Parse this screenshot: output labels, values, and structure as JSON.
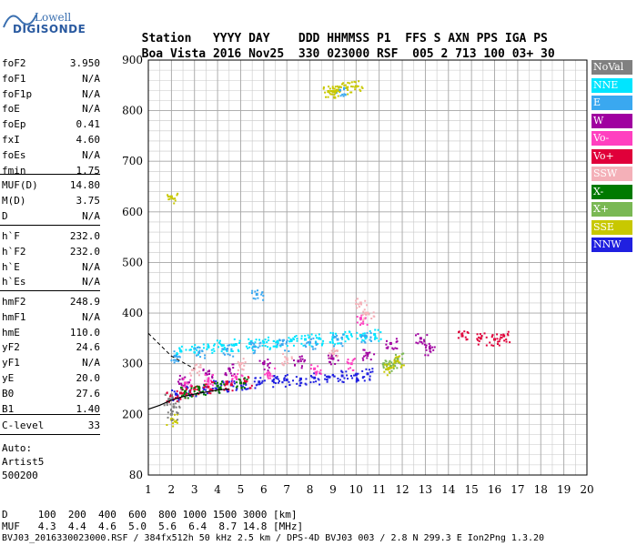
{
  "logo": {
    "top": "Lowell",
    "bottom": "DIGISONDE"
  },
  "header": {
    "row1": [
      "Station",
      "YYYY DAY",
      "DDD",
      "HHMMSS",
      "P1",
      "FFS",
      "S",
      "AXN",
      "PPS",
      "IGA",
      "PS"
    ],
    "row2": [
      "Boa Vista",
      "2016 Nov25",
      "330",
      "023000",
      "RSF",
      "005",
      "2",
      "713",
      "100",
      "03+",
      "30"
    ]
  },
  "params_group1": [
    {
      "name": "foF2",
      "value": "3.950"
    },
    {
      "name": "foF1",
      "value": "N/A"
    },
    {
      "name": "foF1p",
      "value": "N/A"
    },
    {
      "name": "foE",
      "value": "N/A"
    },
    {
      "name": "foEp",
      "value": "0.41"
    },
    {
      "name": "fxI",
      "value": "4.60"
    },
    {
      "name": "foEs",
      "value": "N/A"
    },
    {
      "name": "fmin",
      "value": "1.75"
    }
  ],
  "params_group2": [
    {
      "name": "MUF(D)",
      "value": "14.80"
    },
    {
      "name": "M(D)",
      "value": "3.75"
    },
    {
      "name": "D",
      "value": "N/A"
    }
  ],
  "params_group3": [
    {
      "name": "h`F",
      "value": "232.0"
    },
    {
      "name": "h`F2",
      "value": "232.0"
    },
    {
      "name": "h`E",
      "value": "N/A"
    },
    {
      "name": "h`Es",
      "value": "N/A"
    }
  ],
  "params_group4": [
    {
      "name": "hmF2",
      "value": "248.9"
    },
    {
      "name": "hmF1",
      "value": "N/A"
    },
    {
      "name": "hmE",
      "value": "110.0"
    },
    {
      "name": "yF2",
      "value": "24.6"
    },
    {
      "name": "yF1",
      "value": "N/A"
    },
    {
      "name": "yE",
      "value": "20.0"
    },
    {
      "name": "B0",
      "value": "27.6"
    },
    {
      "name": "B1",
      "value": "1.40"
    }
  ],
  "params_group5": [
    {
      "name": "C-level",
      "value": "33"
    }
  ],
  "autoscale": {
    "line1": "Auto:",
    "line2": "Artist5",
    "line3": "500200"
  },
  "footer": {
    "d_line": "D     100  200  400  600  800 1000 1500 3000 [km]",
    "muf_line": "MUF   4.3  4.4  4.6  5.0  5.6  6.4  8.7 14.8 [MHz]",
    "file_line": "BVJ03_2016330023000.RSF / 384fx512h 50 kHz 2.5 km / DPS-4D BVJ03 003 / 2.8 N 299.3 E Ion2Png 1.3.20"
  },
  "legend": [
    {
      "label": "NoVal",
      "color": "#808080"
    },
    {
      "label": "NNE",
      "color": "#00e5ff"
    },
    {
      "label": "E",
      "color": "#3aa8f0"
    },
    {
      "label": "W",
      "color": "#a000a0"
    },
    {
      "label": "Vo-",
      "color": "#ff40c0"
    },
    {
      "label": "Vo+",
      "color": "#e0003a"
    },
    {
      "label": "SSW",
      "color": "#f4b0b8"
    },
    {
      "label": "X-",
      "color": "#007a00"
    },
    {
      "label": "X+",
      "color": "#7ab854"
    },
    {
      "label": "SSE",
      "color": "#c8c800"
    },
    {
      "label": "NNW",
      "color": "#2020e0"
    }
  ],
  "chart_data": {
    "type": "scatter",
    "xlim": [
      1,
      20
    ],
    "ylim": [
      80,
      900
    ],
    "x_ticks": [
      1,
      2,
      3,
      4,
      5,
      6,
      7,
      8,
      9,
      10,
      11,
      12,
      13,
      14,
      15,
      16,
      17,
      18,
      19,
      20
    ],
    "y_ticks": [
      80,
      200,
      300,
      400,
      500,
      600,
      700,
      800,
      900
    ],
    "grid": true,
    "legend_position": "right",
    "series": [
      {
        "name": "NNW",
        "color": "#2020e0",
        "points": [
          [
            2.2,
            240
          ],
          [
            2.8,
            245
          ],
          [
            3.4,
            252
          ],
          [
            4.0,
            256
          ],
          [
            4.6,
            258
          ],
          [
            5.2,
            262
          ],
          [
            5.8,
            264
          ],
          [
            6.4,
            266
          ],
          [
            7.0,
            268
          ],
          [
            7.6,
            270
          ],
          [
            8.2,
            272
          ],
          [
            8.8,
            274
          ],
          [
            9.4,
            276
          ],
          [
            10.0,
            278
          ],
          [
            10.5,
            280
          ]
        ]
      },
      {
        "name": "NNE",
        "color": "#00e5ff",
        "points": [
          [
            2.4,
            325
          ],
          [
            3.0,
            330
          ],
          [
            3.6,
            333
          ],
          [
            4.2,
            336
          ],
          [
            4.8,
            338
          ],
          [
            5.4,
            340
          ],
          [
            6.0,
            342
          ],
          [
            6.6,
            344
          ],
          [
            7.2,
            346
          ],
          [
            7.8,
            348
          ],
          [
            8.4,
            350
          ],
          [
            9.0,
            352
          ],
          [
            9.6,
            354
          ],
          [
            10.2,
            356
          ],
          [
            10.8,
            358
          ]
        ]
      },
      {
        "name": "E",
        "color": "#3aa8f0",
        "points": [
          [
            2.2,
            315
          ],
          [
            3.2,
            322
          ],
          [
            4.4,
            328
          ],
          [
            5.6,
            334
          ],
          [
            6.8,
            338
          ],
          [
            8.0,
            342
          ],
          [
            9.2,
            348
          ],
          [
            10.4,
            355
          ],
          [
            5.7,
            437
          ],
          [
            9.3,
            840
          ]
        ]
      },
      {
        "name": "W",
        "color": "#a000a0",
        "points": [
          [
            2.5,
            270
          ],
          [
            3.5,
            280
          ],
          [
            4.5,
            290
          ],
          [
            6.0,
            300
          ],
          [
            7.5,
            305
          ],
          [
            9.0,
            310
          ],
          [
            10.5,
            320
          ],
          [
            11.5,
            340
          ],
          [
            12.8,
            350
          ],
          [
            13.2,
            330
          ]
        ]
      },
      {
        "name": "Vo-",
        "color": "#ff40c0",
        "points": [
          [
            2.6,
            262
          ],
          [
            3.6,
            268
          ],
          [
            4.8,
            274
          ],
          [
            6.2,
            282
          ],
          [
            8.2,
            290
          ],
          [
            9.8,
            300
          ],
          [
            10.2,
            390
          ]
        ]
      },
      {
        "name": "Vo+",
        "color": "#e0003a",
        "points": [
          [
            2.0,
            238
          ],
          [
            2.4,
            242
          ],
          [
            3.0,
            250
          ],
          [
            3.6,
            254
          ],
          [
            4.4,
            260
          ],
          [
            5.2,
            265
          ],
          [
            14.6,
            355
          ],
          [
            15.4,
            350
          ],
          [
            16.0,
            348
          ],
          [
            16.4,
            355
          ]
        ]
      },
      {
        "name": "SSW",
        "color": "#f4b0b8",
        "points": [
          [
            3.0,
            290
          ],
          [
            5.0,
            300
          ],
          [
            7.0,
            310
          ],
          [
            9.0,
            320
          ],
          [
            10.2,
            420
          ],
          [
            10.5,
            400
          ]
        ]
      },
      {
        "name": "X-",
        "color": "#007a00",
        "points": [
          [
            2.6,
            245
          ],
          [
            3.2,
            252
          ],
          [
            4.0,
            256
          ],
          [
            5.0,
            262
          ]
        ]
      },
      {
        "name": "X+",
        "color": "#7ab854",
        "points": [
          [
            11.2,
            300
          ],
          [
            11.5,
            295
          ],
          [
            11.8,
            310
          ]
        ]
      },
      {
        "name": "SSE",
        "color": "#c8c800",
        "points": [
          [
            8.8,
            838
          ],
          [
            9.0,
            838
          ],
          [
            9.2,
            840
          ],
          [
            9.6,
            845
          ],
          [
            10.0,
            848
          ],
          [
            2.0,
            630
          ],
          [
            11.4,
            290
          ],
          [
            11.8,
            305
          ],
          [
            2.0,
            190
          ]
        ]
      },
      {
        "name": "NoVal",
        "color": "#808080",
        "points": [
          [
            1.9,
            230
          ],
          [
            2.0,
            200
          ],
          [
            2.1,
            215
          ]
        ]
      }
    ],
    "profile_line": [
      [
        1.0,
        210
      ],
      [
        1.5,
        218
      ],
      [
        2.0,
        228
      ],
      [
        2.5,
        235
      ],
      [
        3.0,
        240
      ],
      [
        3.5,
        244
      ],
      [
        4.0,
        248
      ],
      [
        4.5,
        250
      ]
    ]
  }
}
